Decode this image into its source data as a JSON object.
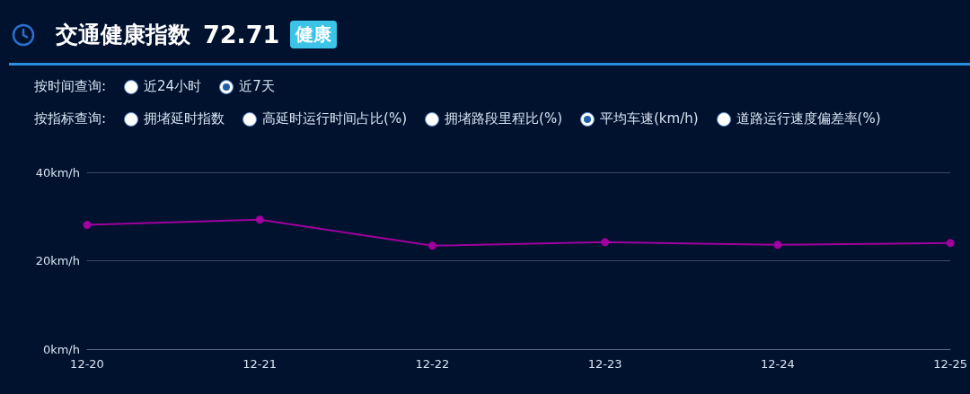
{
  "chart_data": {
    "type": "line",
    "title": "交通健康指数",
    "subtitle": "72.71",
    "annotations": [
      "健康",
      "按时间查询:",
      "近24小时",
      "近7天",
      "按指标查询:",
      "拥堵延时指数",
      "高延时运行时间占比(%)",
      "拥堵路段里程比(%)",
      "平均车速(km/h)",
      "道路运行速度偏差率(%)"
    ],
    "categories": [
      "12-20",
      "12-21",
      "12-22",
      "12-23",
      "12-24",
      "12-25"
    ],
    "series": [
      {
        "color": "#a0009e",
        "values": [
          28.1,
          29.3,
          23.4,
          24.2,
          23.6,
          24.0
        ]
      }
    ],
    "ylim": [
      0,
      40
    ],
    "yticks": [
      {
        "value": 0,
        "label": "0km/h"
      },
      {
        "value": 20,
        "label": "20km/h"
      },
      {
        "value": 40,
        "label": "40km/h"
      }
    ],
    "grid": "y",
    "marker": "circle",
    "line_style": "solid"
  }
}
